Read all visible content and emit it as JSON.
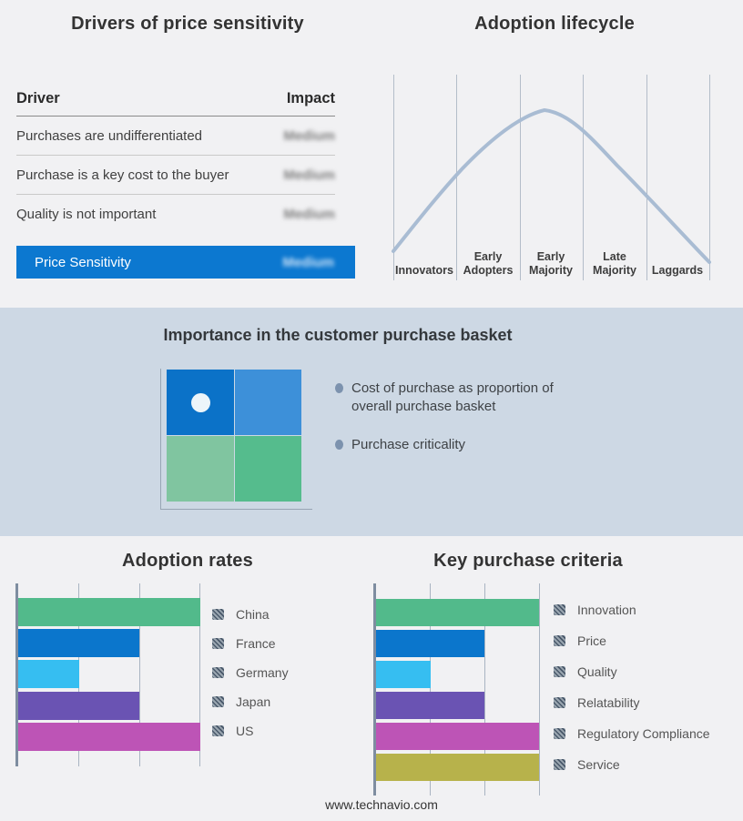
{
  "page": {
    "footer_url": "www.technavio.com"
  },
  "colors": {
    "accent_blue": "#0c78d0",
    "band_background": "#cdd8e4",
    "lifecycle_line": "#a9bcd3",
    "quadrant_top_left": "#0b72c8",
    "quadrant_top_right": "#3d90d9",
    "quadrant_bottom_left": "#80c5a0",
    "quadrant_bottom_right": "#55bc8d"
  },
  "drivers_panel": {
    "title": "Drivers of price sensitivity",
    "columns": {
      "driver": "Driver",
      "impact": "Impact"
    },
    "rows": [
      {
        "driver": "Purchases are undifferentiated",
        "impact": "Medium",
        "impact_obscured": true
      },
      {
        "driver": "Purchase is a key cost to the buyer",
        "impact": "Medium",
        "impact_obscured": true
      },
      {
        "driver": "Quality is not important",
        "impact": "Medium",
        "impact_obscured": true
      }
    ],
    "summary": {
      "label": "Price Sensitivity",
      "impact": "Medium",
      "impact_obscured": true
    }
  },
  "basket_panel": {
    "title": "Importance in the customer purchase basket",
    "bullets": [
      "Cost of purchase as proportion of overall purchase basket",
      "Purchase criticality"
    ]
  },
  "chart_data": [
    {
      "type": "line",
      "title": "Adoption lifecycle",
      "x_categories": [
        "Innovators",
        "Early Adopters",
        "Early Majority",
        "Late Majority",
        "Laggards"
      ],
      "shape": "bell curve",
      "peak_at": "Early Majority",
      "line_color": "#a9bcd3",
      "gridlines": "vertical between stages",
      "y_ticks_shown": false
    },
    {
      "type": "bar",
      "title": "Adoption rates",
      "orientation": "horizontal",
      "categories": [
        "China",
        "France",
        "Germany",
        "Japan",
        "US"
      ],
      "values": [
        3,
        2,
        1,
        2,
        3
      ],
      "xlim": [
        0,
        3
      ],
      "x_ticks_shown": false,
      "colors": [
        "#52ba8b",
        "#0b76cc",
        "#36bef1",
        "#6a53b3",
        "#bd54b6"
      ],
      "legend_position": "right",
      "legend_swatch_style": "hatched"
    },
    {
      "type": "bar",
      "title": "Key purchase criteria",
      "orientation": "horizontal",
      "categories": [
        "Innovation",
        "Price",
        "Quality",
        "Relatability",
        "Regulatory Compliance",
        "Service"
      ],
      "values": [
        3,
        2,
        1,
        2,
        3,
        3
      ],
      "xlim": [
        0,
        3
      ],
      "x_ticks_shown": false,
      "colors": [
        "#52ba8b",
        "#0b76cc",
        "#36bef1",
        "#6a53b3",
        "#bd54b6",
        "#b7b24b"
      ],
      "legend_position": "right",
      "legend_swatch_style": "hatched"
    }
  ]
}
